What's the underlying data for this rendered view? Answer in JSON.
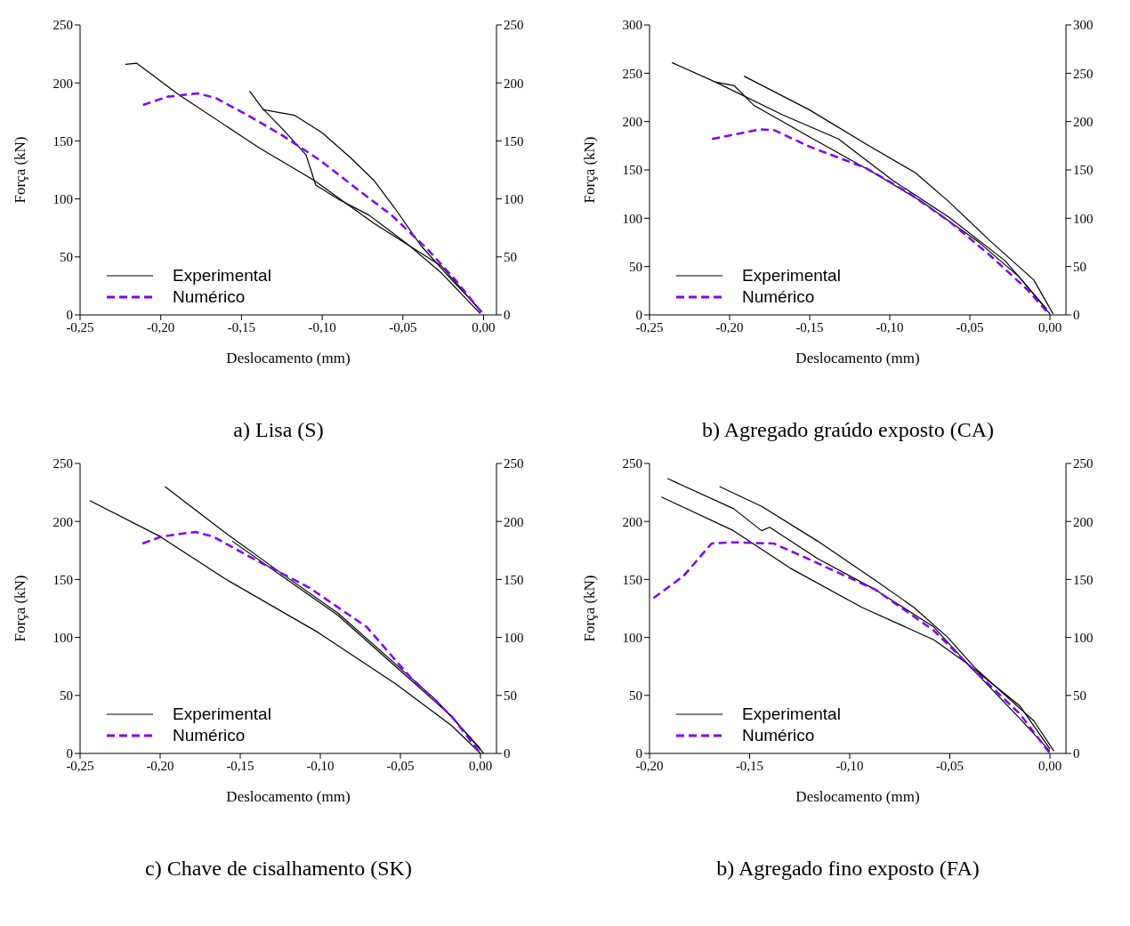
{
  "chart_data": [
    {
      "type": "line",
      "title": "a) Lisa (S)",
      "xlabel": "Deslocamento (mm)",
      "ylabel": "Força (kN)",
      "xlim": [
        -0.25,
        0.008
      ],
      "xticks": [
        {
          "value": -0.25,
          "label": "-0,25"
        },
        {
          "value": -0.2,
          "label": "-0,20"
        },
        {
          "value": -0.15,
          "label": "-0,15"
        },
        {
          "value": -0.1,
          "label": "-0,10"
        },
        {
          "value": -0.05,
          "label": "-0,05"
        },
        {
          "value": 0,
          "label": "0,00"
        }
      ],
      "ylim": [
        0,
        250
      ],
      "yticks": [
        0,
        50,
        100,
        150,
        200,
        250
      ],
      "y2lim": [
        0,
        250
      ],
      "y2ticks": [
        0,
        50,
        100,
        150,
        200,
        250
      ],
      "legend": "bottom left",
      "grid": false,
      "marker": "none",
      "series": [
        {
          "name": "Experimental",
          "color": "#000000",
          "x": [
            -0.222,
            -0.215,
            -0.189,
            -0.139,
            -0.105,
            -0.068,
            -0.026,
            -0.003
          ],
          "values": [
            216,
            217,
            190,
            144,
            116,
            79,
            42,
            5
          ]
        },
        {
          "color": "#000000",
          "x": [
            -0.145,
            -0.137,
            -0.125,
            -0.11,
            -0.104,
            -0.089,
            -0.071,
            -0.048,
            -0.026,
            -0.002
          ],
          "values": [
            193,
            178,
            161,
            138,
            112,
            99,
            86,
            62,
            36,
            1
          ]
        },
        {
          "color": "#000000",
          "x": [
            -0.137,
            -0.117,
            -0.1,
            -0.082,
            -0.068,
            -0.055,
            -0.039,
            -0.019,
            -0.001
          ],
          "values": [
            177,
            172,
            157,
            135,
            116,
            92,
            60,
            29,
            3
          ]
        },
        {
          "name": "Numérico",
          "color": "#8000ff",
          "line_style": "dashed",
          "x": [
            -0.211,
            -0.196,
            -0.177,
            -0.166,
            -0.146,
            -0.125,
            -0.101,
            -0.077,
            -0.057,
            -0.035,
            -0.018,
            0
          ],
          "values": [
            181,
            188,
            191,
            187,
            172,
            155,
            133,
            107,
            86,
            57,
            31,
            0
          ]
        }
      ]
    },
    {
      "type": "line",
      "title": "b) Agregado graúdo exposto (CA)",
      "xlabel": "Deslocamento (mm)",
      "ylabel": "Força (kN)",
      "xlim": [
        -0.25,
        0.01
      ],
      "xticks": [
        {
          "value": -0.25,
          "label": "-0,25"
        },
        {
          "value": -0.2,
          "label": "-0,20"
        },
        {
          "value": -0.15,
          "label": "-0,15"
        },
        {
          "value": -0.1,
          "label": "-0,10"
        },
        {
          "value": -0.05,
          "label": "-0,05"
        },
        {
          "value": 0,
          "label": "0,00"
        }
      ],
      "ylim": [
        0,
        300
      ],
      "yticks": [
        0,
        50,
        100,
        150,
        200,
        250,
        300
      ],
      "y2lim": [
        0,
        300
      ],
      "y2ticks": [
        0,
        50,
        100,
        150,
        200,
        250,
        300
      ],
      "legend": "bottom left",
      "grid": false,
      "marker": "none",
      "series": [
        {
          "name": "Experimental",
          "color": "#000000",
          "x": [
            -0.236,
            -0.209,
            -0.197,
            -0.185,
            -0.15,
            -0.11,
            -0.08,
            -0.045,
            -0.019,
            0
          ],
          "values": [
            261,
            241,
            237,
            217,
            184,
            147,
            117,
            76,
            39,
            1
          ]
        },
        {
          "color": "#000000",
          "x": [
            -0.209,
            -0.167,
            -0.132,
            -0.098,
            -0.063,
            -0.028,
            -0.002
          ],
          "values": [
            241,
            207,
            182,
            139,
            101,
            56,
            6
          ]
        },
        {
          "color": "#000000",
          "x": [
            -0.191,
            -0.15,
            -0.115,
            -0.084,
            -0.063,
            -0.037,
            -0.01,
            0.002
          ],
          "values": [
            247,
            212,
            177,
            147,
            117,
            76,
            36,
            1
          ]
        },
        {
          "name": "Numérico",
          "color": "#8000ff",
          "line_style": "dashed",
          "x": [
            -0.211,
            -0.181,
            -0.172,
            -0.15,
            -0.115,
            -0.089,
            -0.063,
            -0.037,
            -0.014,
            0
          ],
          "values": [
            182,
            192,
            191,
            174,
            152,
            127,
            97,
            61,
            26,
            0
          ]
        }
      ]
    },
    {
      "type": "line",
      "title": "c) Chave de cisalhamento (SK)",
      "xlabel": "Deslocamento (mm)",
      "ylabel": "Força (kN)",
      "xlim": [
        -0.25,
        0.01
      ],
      "xticks": [
        {
          "value": -0.25,
          "label": "-0,25"
        },
        {
          "value": -0.2,
          "label": "-0,20"
        },
        {
          "value": -0.15,
          "label": "-0,15"
        },
        {
          "value": -0.1,
          "label": "-0,10"
        },
        {
          "value": -0.05,
          "label": "-0,05"
        },
        {
          "value": 0,
          "label": "0,00"
        }
      ],
      "ylim": [
        0,
        250
      ],
      "yticks": [
        0,
        50,
        100,
        150,
        200,
        250
      ],
      "y2lim": [
        0,
        250
      ],
      "y2ticks": [
        0,
        50,
        100,
        150,
        200,
        250
      ],
      "legend": "bottom left",
      "grid": false,
      "marker": "none",
      "series": [
        {
          "name": "Experimental",
          "color": "#000000",
          "x": [
            -0.244,
            -0.2,
            -0.16,
            -0.101,
            -0.053,
            -0.018,
            0
          ],
          "values": [
            218,
            187,
            151,
            104,
            60,
            24,
            0
          ]
        },
        {
          "color": "#000000",
          "x": [
            -0.197,
            -0.16,
            -0.124,
            -0.089,
            -0.053,
            -0.027,
            0
          ],
          "values": [
            230,
            191,
            155,
            121,
            77,
            45,
            4
          ]
        },
        {
          "color": "#000000",
          "x": [
            -0.155,
            -0.124,
            -0.089,
            -0.053,
            -0.018,
            0.002
          ],
          "values": [
            183,
            153,
            119,
            75,
            32,
            0
          ]
        },
        {
          "name": "Numérico",
          "color": "#8000ff",
          "line_style": "dashed",
          "x": [
            -0.211,
            -0.199,
            -0.178,
            -0.167,
            -0.142,
            -0.107,
            -0.071,
            -0.044,
            -0.018,
            0
          ],
          "values": [
            181,
            187,
            191,
            187,
            168,
            143,
            109,
            66,
            32,
            0
          ]
        }
      ]
    },
    {
      "type": "line",
      "title": "b) Agregado fino exposto (FA)",
      "xlabel": "Deslocamento (mm)",
      "ylabel": "Força (kN)",
      "xlim": [
        -0.2,
        0.008
      ],
      "xticks": [
        {
          "value": -0.2,
          "label": "-0,20"
        },
        {
          "value": -0.15,
          "label": "-0,15"
        },
        {
          "value": -0.1,
          "label": "-0,10"
        },
        {
          "value": -0.05,
          "label": "-0,05"
        },
        {
          "value": 0,
          "label": "0,00"
        }
      ],
      "ylim": [
        0,
        250
      ],
      "yticks": [
        0,
        50,
        100,
        150,
        200,
        250
      ],
      "y2lim": [
        0,
        250
      ],
      "y2ticks": [
        0,
        50,
        100,
        150,
        200,
        250
      ],
      "legend": "bottom left",
      "grid": false,
      "marker": "none",
      "series": [
        {
          "name": "Experimental",
          "color": "#000000",
          "x": [
            -0.191,
            -0.158,
            -0.144,
            -0.14,
            -0.116,
            -0.087,
            -0.058,
            -0.041,
            -0.015,
            0
          ],
          "values": [
            237,
            211,
            192,
            195,
            168,
            141,
            109,
            77,
            41,
            4
          ]
        },
        {
          "color": "#000000",
          "x": [
            -0.194,
            -0.158,
            -0.13,
            -0.094,
            -0.058,
            -0.041,
            -0.015,
            0
          ],
          "values": [
            221,
            192,
            160,
            126,
            98,
            77,
            30,
            2
          ]
        },
        {
          "color": "#000000",
          "x": [
            -0.165,
            -0.144,
            -0.116,
            -0.087,
            -0.068,
            -0.051,
            -0.037,
            -0.008,
            0.002
          ],
          "values": [
            230,
            213,
            183,
            149,
            126,
            100,
            73,
            28,
            2
          ]
        },
        {
          "name": "Numérico",
          "color": "#8000ff",
          "line_style": "dashed",
          "x": [
            -0.198,
            -0.183,
            -0.169,
            -0.158,
            -0.138,
            -0.116,
            -0.087,
            -0.058,
            -0.041,
            -0.015,
            0
          ],
          "values": [
            134,
            153,
            181,
            182,
            181,
            164,
            141,
            106,
            77,
            34,
            0
          ]
        }
      ]
    }
  ]
}
